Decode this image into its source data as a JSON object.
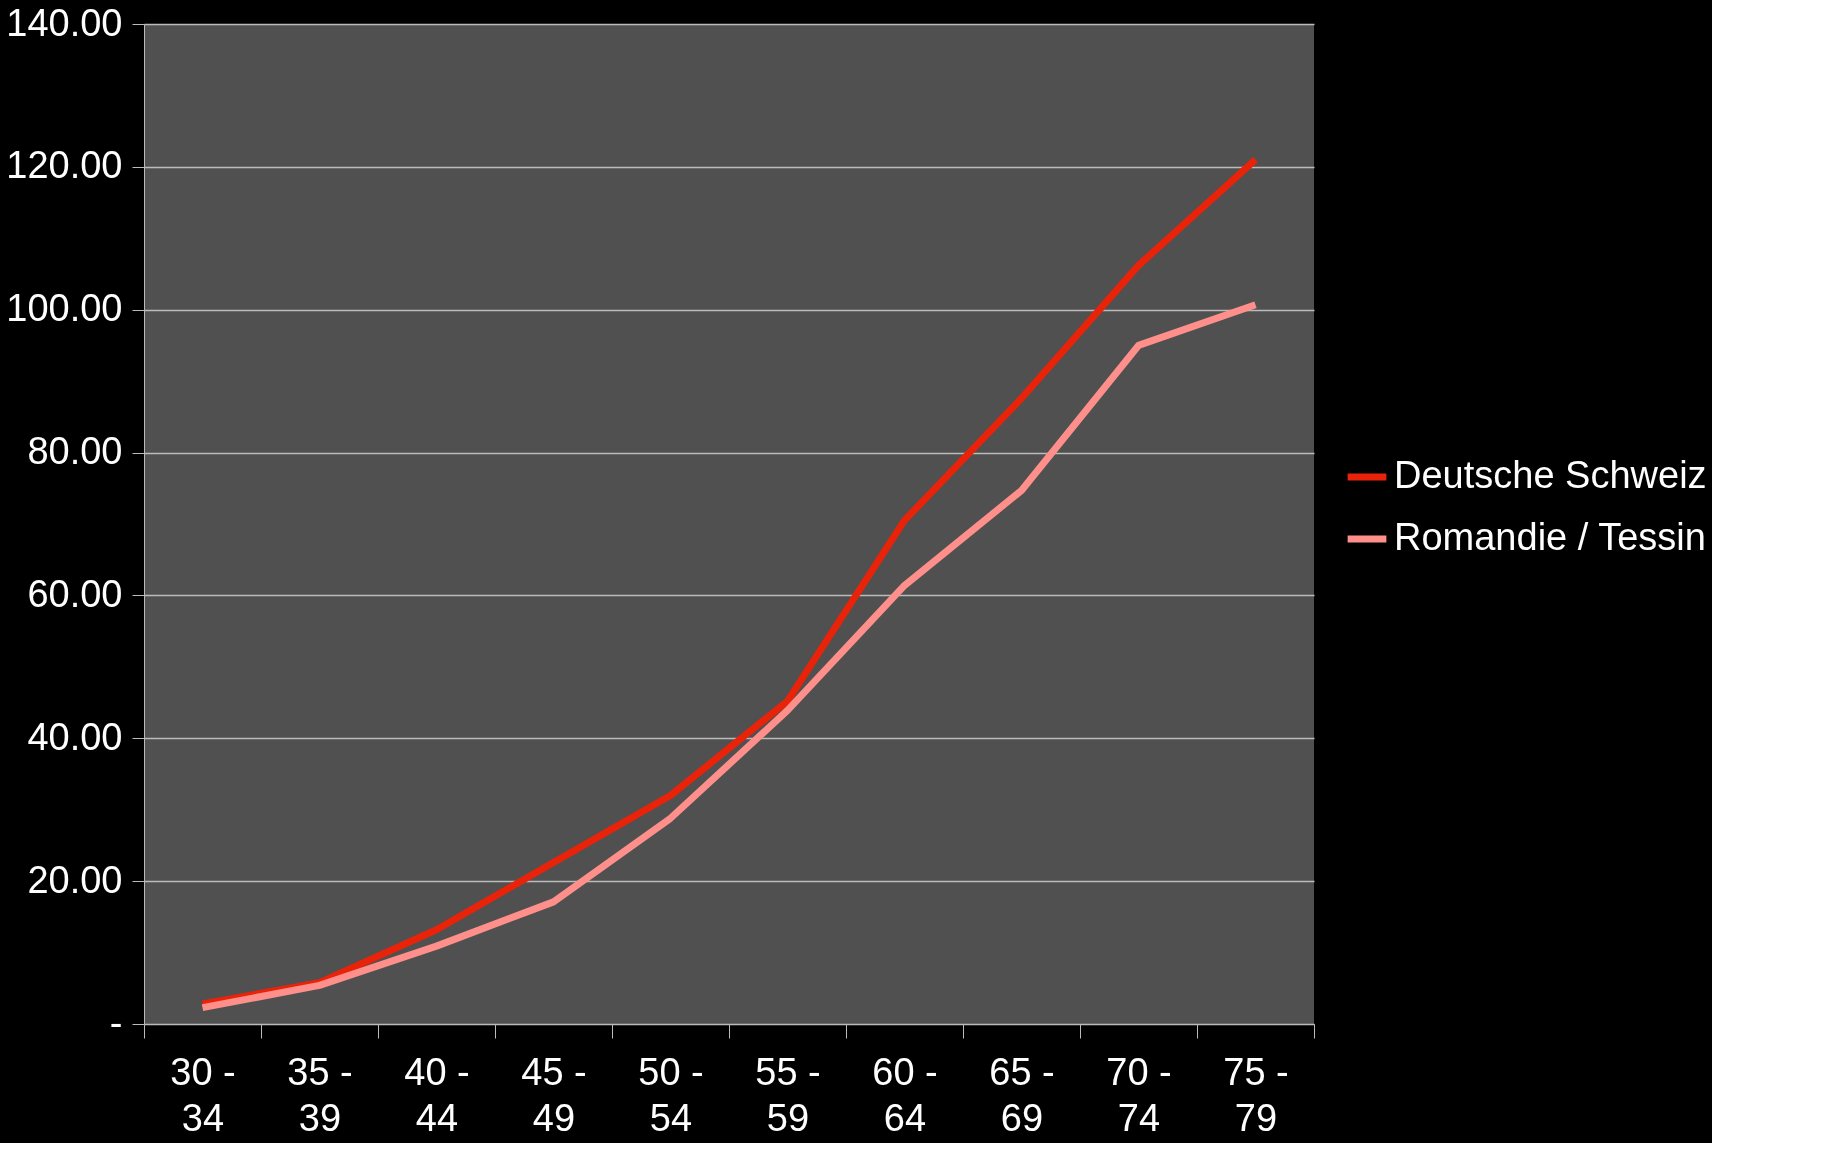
{
  "chart_data": {
    "type": "line",
    "categories": [
      "30 - 34",
      "35 - 39",
      "40 - 44",
      "45 - 49",
      "50 - 54",
      "55 - 59",
      "60 - 64",
      "65 - 69",
      "70 - 74",
      "75 - 79"
    ],
    "series": [
      {
        "name": "Deutsche Schweiz",
        "color": "#e8230a",
        "values": [
          2.8,
          5.8,
          13.2,
          22.6,
          32,
          45.2,
          70.5,
          87.6,
          106.2,
          121
        ]
      },
      {
        "name": "Romandie / Tessin",
        "color": "#ff8f8a",
        "values": [
          2.3,
          5.4,
          10.9,
          17.1,
          28.8,
          43.9,
          61.4,
          74.7,
          95,
          100.7
        ]
      }
    ],
    "ylim": [
      0,
      140
    ],
    "yticks": [
      {
        "value": 0,
        "label": "-"
      },
      {
        "value": 20,
        "label": "20.00"
      },
      {
        "value": 40,
        "label": "40.00"
      },
      {
        "value": 60,
        "label": "60.00"
      },
      {
        "value": 80,
        "label": "80.00"
      },
      {
        "value": 100,
        "label": "100.00"
      },
      {
        "value": 120,
        "label": "120.00"
      },
      {
        "value": 140,
        "label": "140.00"
      }
    ],
    "grid": "y",
    "legend": "right",
    "marker": "none",
    "line_style": "solid"
  }
}
